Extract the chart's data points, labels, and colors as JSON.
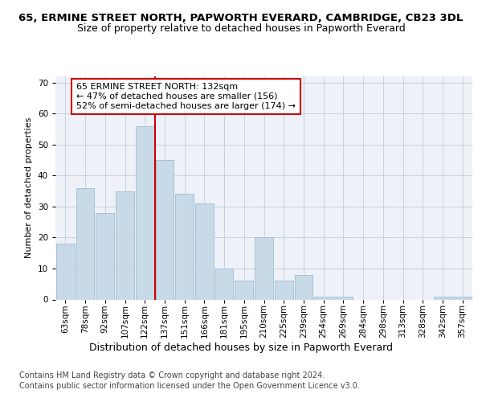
{
  "title_line1": "65, ERMINE STREET NORTH, PAPWORTH EVERARD, CAMBRIDGE, CB23 3DL",
  "title_line2": "Size of property relative to detached houses in Papworth Everard",
  "xlabel": "Distribution of detached houses by size in Papworth Everard",
  "ylabel": "Number of detached properties",
  "footnote1": "Contains HM Land Registry data © Crown copyright and database right 2024.",
  "footnote2": "Contains public sector information licensed under the Open Government Licence v3.0.",
  "annotation_line1": "65 ERMINE STREET NORTH: 132sqm",
  "annotation_line2": "← 47% of detached houses are smaller (156)",
  "annotation_line3": "52% of semi-detached houses are larger (174) →",
  "bar_labels": [
    "63sqm",
    "78sqm",
    "92sqm",
    "107sqm",
    "122sqm",
    "137sqm",
    "151sqm",
    "166sqm",
    "181sqm",
    "195sqm",
    "210sqm",
    "225sqm",
    "239sqm",
    "254sqm",
    "269sqm",
    "284sqm",
    "298sqm",
    "313sqm",
    "328sqm",
    "342sqm",
    "357sqm"
  ],
  "bar_values": [
    18,
    36,
    28,
    35,
    56,
    45,
    34,
    31,
    10,
    6,
    20,
    6,
    8,
    1,
    1,
    0,
    0,
    0,
    0,
    1,
    1
  ],
  "bar_color": "#c8d9e8",
  "bar_edgecolor": "#a0bcd0",
  "ref_line_color": "#cc0000",
  "annotation_box_color": "#cc0000",
  "ylim": [
    0,
    72
  ],
  "yticks": [
    0,
    10,
    20,
    30,
    40,
    50,
    60,
    70
  ],
  "background_color": "#ffffff",
  "plot_bg_color": "#eef2f8",
  "grid_color": "#c8d0e0",
  "title1_fontsize": 9.5,
  "title2_fontsize": 9,
  "xlabel_fontsize": 9,
  "ylabel_fontsize": 8,
  "tick_fontsize": 7.5,
  "annotation_fontsize": 8,
  "footnote_fontsize": 7
}
